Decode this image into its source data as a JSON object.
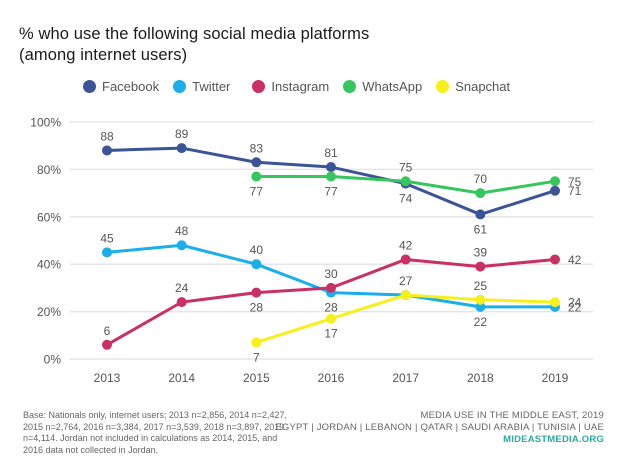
{
  "title_line1": "% who use the following social media platforms",
  "title_line2": "(among internet users)",
  "legend": [
    {
      "name": "Facebook",
      "color": "#3b5498"
    },
    {
      "name": "Twitter",
      "color": "#1aaeea"
    },
    {
      "name": "Instagram",
      "color": "#c93064"
    },
    {
      "name": "WhatsApp",
      "color": "#36c65e"
    },
    {
      "name": "Snapchat",
      "color": "#f7f01a"
    }
  ],
  "footnote": "Base: Nationals only, internet users; 2013 n=2,856, 2014 n=2,427, 2015 n=2,764, 2016 n=3,384, 2017 n=3,539, 2018 n=3,897, 2019 n=4,114. Jordan not included in calculations as 2014, 2015, and 2016 data not collected in Jordan.",
  "source": {
    "line1": "MEDIA USE IN THE MIDDLE EAST, 2019",
    "line2": "EGYPT | JORDAN | LEBANON | QATAR | SAUDI ARABIA | TUNISIA | UAE",
    "link": "MIDEASTMEDIA.ORG"
  },
  "chart_data": {
    "type": "line",
    "title": "% who use the following social media platforms (among internet users)",
    "xlabel": "",
    "ylabel": "",
    "x": [
      "2013",
      "2014",
      "2015",
      "2016",
      "2017",
      "2018",
      "2019"
    ],
    "ylim": [
      0,
      100
    ],
    "yticks": [
      0,
      20,
      40,
      60,
      80,
      100
    ],
    "ytick_labels": [
      "0%",
      "20%",
      "40%",
      "60%",
      "80%",
      "100%"
    ],
    "grid": true,
    "legend_position": "top",
    "series": [
      {
        "name": "Facebook",
        "color": "#3b5498",
        "values": [
          88,
          89,
          83,
          81,
          74,
          61,
          71
        ],
        "labels": [
          "88",
          "89",
          "83",
          "81",
          "74",
          "61",
          "71"
        ],
        "label_pos": [
          "above",
          "above",
          "above",
          "above",
          "below",
          "below",
          "right"
        ]
      },
      {
        "name": "Twitter",
        "color": "#1aaeea",
        "values": [
          45,
          48,
          40,
          28,
          27,
          22,
          22
        ],
        "labels": [
          "45",
          "48",
          "40",
          "28",
          "",
          "22",
          "22"
        ],
        "label_pos": [
          "above",
          "above",
          "above",
          "below",
          "none",
          "below",
          "right"
        ]
      },
      {
        "name": "Instagram",
        "color": "#c93064",
        "values": [
          6,
          24,
          28,
          30,
          42,
          39,
          42
        ],
        "labels": [
          "6",
          "24",
          "28",
          "30",
          "42",
          "39",
          "42"
        ],
        "label_pos": [
          "above",
          "above",
          "below",
          "above",
          "above",
          "above",
          "right"
        ]
      },
      {
        "name": "WhatsApp",
        "color": "#36c65e",
        "values": [
          null,
          null,
          77,
          77,
          75,
          70,
          75
        ],
        "labels": [
          "",
          "",
          "77",
          "77",
          "75",
          "70",
          "75"
        ],
        "label_pos": [
          "none",
          "none",
          "below",
          "below",
          "above",
          "above",
          "right"
        ]
      },
      {
        "name": "Snapchat",
        "color": "#f7f01a",
        "values": [
          null,
          null,
          7,
          17,
          27,
          25,
          24
        ],
        "labels": [
          "",
          "",
          "7",
          "17",
          "27",
          "25",
          "24"
        ],
        "label_pos": [
          "none",
          "none",
          "below",
          "below",
          "above",
          "above",
          "right"
        ]
      }
    ]
  }
}
